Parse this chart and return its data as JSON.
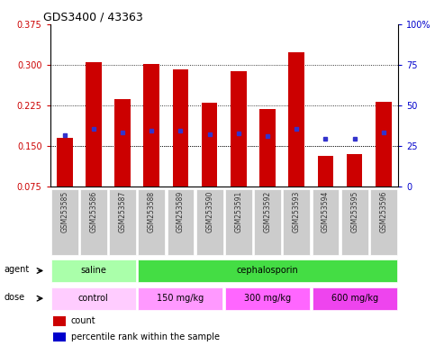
{
  "title": "GDS3400 / 43363",
  "samples": [
    "GSM253585",
    "GSM253586",
    "GSM253587",
    "GSM253588",
    "GSM253589",
    "GSM253590",
    "GSM253591",
    "GSM253592",
    "GSM253593",
    "GSM253594",
    "GSM253595",
    "GSM253596"
  ],
  "bar_heights": [
    0.165,
    0.305,
    0.237,
    0.302,
    0.292,
    0.23,
    0.288,
    0.218,
    0.323,
    0.132,
    0.135,
    0.232
  ],
  "blue_values": [
    0.17,
    0.182,
    0.175,
    0.178,
    0.178,
    0.172,
    0.173,
    0.168,
    0.182,
    0.163,
    0.163,
    0.175
  ],
  "bar_color": "#CC0000",
  "blue_color": "#3333CC",
  "ylim_left": [
    0.075,
    0.375
  ],
  "yticks_left": [
    0.075,
    0.15,
    0.225,
    0.3,
    0.375
  ],
  "yticks_right": [
    0,
    25,
    50,
    75,
    100
  ],
  "ylabel_left_color": "#CC0000",
  "ylabel_right_color": "#0000CC",
  "agent_labels": [
    {
      "text": "saline",
      "start": 0,
      "end": 2,
      "color": "#AAFFAA"
    },
    {
      "text": "cephalosporin",
      "start": 3,
      "end": 11,
      "color": "#44DD44"
    }
  ],
  "dose_labels": [
    {
      "text": "control",
      "start": 0,
      "end": 2,
      "color": "#FFCCFF"
    },
    {
      "text": "150 mg/kg",
      "start": 3,
      "end": 5,
      "color": "#FF99FF"
    },
    {
      "text": "300 mg/kg",
      "start": 6,
      "end": 8,
      "color": "#FF66FF"
    },
    {
      "text": "600 mg/kg",
      "start": 9,
      "end": 11,
      "color": "#EE44EE"
    }
  ],
  "legend_count_color": "#CC0000",
  "legend_pct_color": "#0000CC",
  "bar_width": 0.55,
  "tick_bg": "#CCCCCC",
  "fig_width": 4.83,
  "fig_height": 3.84,
  "dpi": 100
}
